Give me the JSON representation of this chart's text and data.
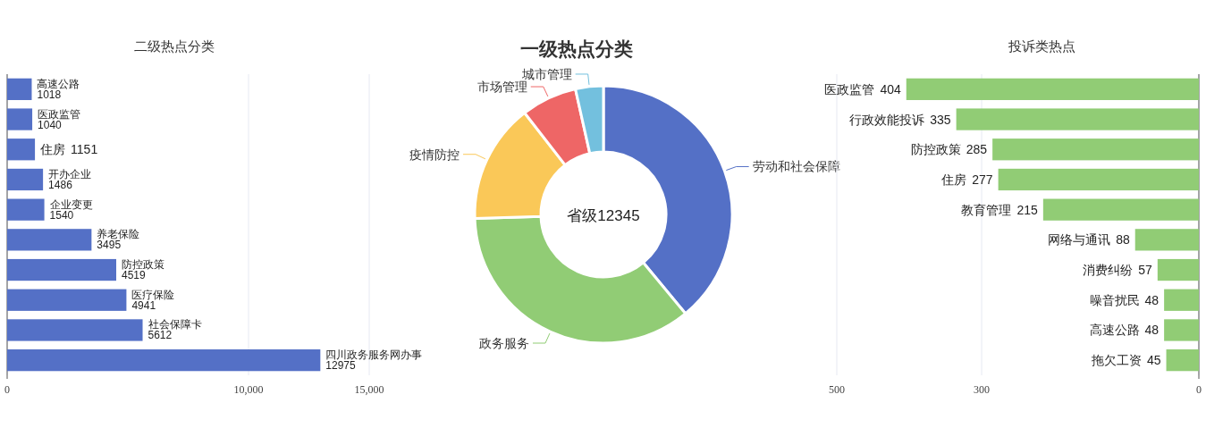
{
  "chart_data": [
    {
      "type": "bar",
      "orientation": "horizontal",
      "title": "二级热点分类",
      "categories": [
        "高速公路",
        "医政监管",
        "住房",
        "开办企业",
        "企业变更",
        "养老保险",
        "防控政策",
        "医疗保险",
        "社会保障卡",
        "四川政务服务网办事"
      ],
      "series": [
        {
          "color": "#5470c6",
          "values": [
            1018,
            1040,
            1151,
            1486,
            1540,
            3495,
            4519,
            4941,
            5612,
            12975
          ]
        }
      ],
      "xlim": [
        0,
        15000
      ],
      "xticks": [
        0,
        {
          "value": 10000,
          "label": "10,000"
        },
        {
          "value": 15000,
          "label": "15,000"
        }
      ],
      "grid": "x",
      "data_labels": true
    },
    {
      "type": "donut",
      "title": "一级热点分类",
      "categories": [
        "劳动和社会保障",
        "政务服务",
        "疫情防控",
        "市场管理",
        "城市管理"
      ],
      "values": [
        39,
        35.5,
        15,
        7,
        3.5
      ],
      "colors": [
        "#5470c6",
        "#91cc75",
        "#fac858",
        "#ee6666",
        "#73c0de"
      ],
      "annotations": [
        "省级12345"
      ]
    },
    {
      "type": "bar",
      "orientation": "horizontal",
      "title": "投诉类热点",
      "categories": [
        "医政监管",
        "行政效能投诉",
        "防控政策",
        "住房",
        "教育管理",
        "网络与通讯",
        "消费纠纷",
        "噪音扰民",
        "高速公路",
        "拖欠工资"
      ],
      "series": [
        {
          "color": "#91cc75",
          "values": [
            404,
            335,
            285,
            277,
            215,
            88,
            57,
            48,
            48,
            45
          ]
        }
      ],
      "xlim": [
        500,
        0
      ],
      "xticks": [
        500,
        300,
        0
      ],
      "grid": "x",
      "data_labels": true
    }
  ]
}
